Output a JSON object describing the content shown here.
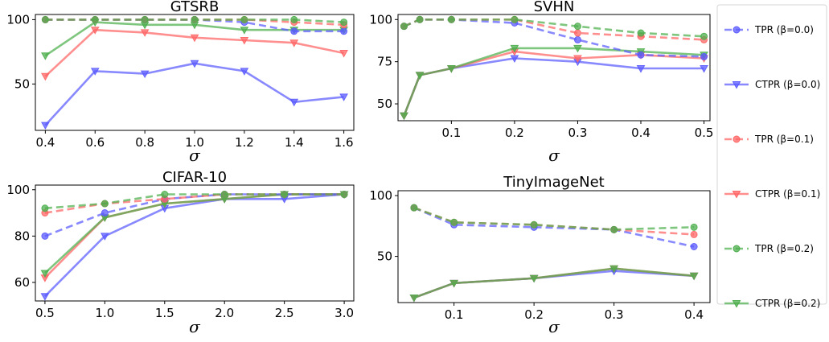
{
  "colors": {
    "blue": "#5a5aff",
    "red": "#ff6464",
    "green": "#4cae4c",
    "overlap": "#555533"
  },
  "legend": {
    "placement": "right",
    "entries": [
      {
        "label": "TPR (β=0.0)",
        "color": "#5a5aff",
        "style": "dashed",
        "marker": "circle"
      },
      {
        "label": "CTPR (β=0.0)",
        "color": "#5a5aff",
        "style": "solid",
        "marker": "triangle-down"
      },
      {
        "label": "TPR (β=0.1)",
        "color": "#ff6464",
        "style": "dashed",
        "marker": "circle"
      },
      {
        "label": "CTPR (β=0.1)",
        "color": "#ff6464",
        "style": "solid",
        "marker": "triangle-down"
      },
      {
        "label": "TPR (β=0.2)",
        "color": "#4cae4c",
        "style": "dashed",
        "marker": "circle"
      },
      {
        "label": "CTPR (β=0.2)",
        "color": "#4cae4c",
        "style": "solid",
        "marker": "triangle-down"
      }
    ]
  },
  "chart_data": [
    {
      "type": "line",
      "title": "GTSRB",
      "xlabel": "σ",
      "ylabel": "",
      "x": [
        0.4,
        0.6,
        0.8,
        1.0,
        1.2,
        1.4,
        1.6
      ],
      "xlim": [
        0.4,
        1.6
      ],
      "ylim": [
        0,
        100
      ],
      "xticks": [
        "0.4",
        "0.6",
        "0.8",
        "1.0",
        "1.2",
        "1.4",
        "1.6"
      ],
      "yticks": [
        "50",
        "100"
      ],
      "series": [
        {
          "name": "TPR (β=0.0)",
          "style": "dashed",
          "values": [
            100,
            100,
            100,
            100,
            98,
            91,
            91
          ]
        },
        {
          "name": "CTPR (β=0.0)",
          "style": "solid",
          "values": [
            18,
            60,
            58,
            66,
            60,
            36,
            40
          ]
        },
        {
          "name": "TPR (β=0.1)",
          "style": "dashed",
          "values": [
            100,
            100,
            100,
            100,
            100,
            98,
            96
          ]
        },
        {
          "name": "CTPR (β=0.1)",
          "style": "solid",
          "values": [
            56,
            92,
            90,
            86,
            84,
            82,
            74
          ]
        },
        {
          "name": "TPR (β=0.2)",
          "style": "dashed",
          "values": [
            100,
            100,
            100,
            100,
            100,
            100,
            98
          ]
        },
        {
          "name": "CTPR (β=0.2)",
          "style": "solid",
          "values": [
            72,
            98,
            96,
            96,
            92,
            92,
            92
          ]
        }
      ]
    },
    {
      "type": "line",
      "title": "SVHN",
      "xlabel": "σ",
      "ylabel": "",
      "x": [
        0.025,
        0.05,
        0.1,
        0.2,
        0.3,
        0.4,
        0.5
      ],
      "xlim": [
        0.025,
        0.5
      ],
      "ylim": [
        40,
        100
      ],
      "xticks": [
        "0.1",
        "0.2",
        "0.3",
        "0.4",
        "0.5"
      ],
      "yticks": [
        "50",
        "75",
        "100"
      ],
      "series": [
        {
          "name": "TPR (β=0.0)",
          "style": "dashed",
          "values": [
            96,
            100,
            100,
            98,
            88,
            79,
            78
          ]
        },
        {
          "name": "CTPR (β=0.0)",
          "style": "solid",
          "values": [
            43,
            67,
            71,
            77,
            75,
            71,
            71
          ]
        },
        {
          "name": "TPR (β=0.1)",
          "style": "dashed",
          "values": [
            96,
            100,
            100,
            100,
            92,
            90,
            88
          ]
        },
        {
          "name": "CTPR (β=0.1)",
          "style": "solid",
          "values": [
            43,
            67,
            71,
            81,
            77,
            79,
            77
          ]
        },
        {
          "name": "TPR (β=0.2)",
          "style": "dashed",
          "values": [
            96,
            100,
            100,
            100,
            96,
            92,
            90
          ]
        },
        {
          "name": "CTPR (β=0.2)",
          "style": "solid",
          "values": [
            43,
            67,
            71,
            83,
            83,
            81,
            79
          ]
        }
      ]
    },
    {
      "type": "line",
      "title": "CIFAR-10",
      "xlabel": "σ",
      "ylabel": "",
      "x": [
        0.5,
        1.0,
        1.5,
        2.0,
        2.5,
        3.0
      ],
      "xlim": [
        0.5,
        3.0
      ],
      "ylim": [
        50,
        100
      ],
      "xticks": [
        "0.5",
        "1.0",
        "1.5",
        "2.0",
        "2.5",
        "3.0"
      ],
      "yticks": [
        "60",
        "80",
        "100"
      ],
      "series": [
        {
          "name": "TPR (β=0.0)",
          "style": "dashed",
          "values": [
            80,
            90,
            96,
            98,
            98,
            98
          ]
        },
        {
          "name": "CTPR (β=0.0)",
          "style": "solid",
          "values": [
            54,
            80,
            92,
            96,
            96,
            98
          ]
        },
        {
          "name": "TPR (β=0.1)",
          "style": "dashed",
          "values": [
            90,
            94,
            96,
            98,
            98,
            98
          ]
        },
        {
          "name": "CTPR (β=0.1)",
          "style": "solid",
          "values": [
            62,
            88,
            94,
            96,
            98,
            98
          ]
        },
        {
          "name": "TPR (β=0.2)",
          "style": "dashed",
          "values": [
            92,
            94,
            98,
            98,
            98,
            98
          ]
        },
        {
          "name": "CTPR (β=0.2)",
          "style": "solid",
          "values": [
            64,
            88,
            94,
            96,
            98,
            98
          ]
        }
      ]
    },
    {
      "type": "line",
      "title": "TinyImageNet",
      "xlabel": "σ",
      "ylabel": "",
      "x": [
        0.05,
        0.1,
        0.2,
        0.3,
        0.4
      ],
      "xlim": [
        0.05,
        0.4
      ],
      "ylim": [
        10,
        100
      ],
      "xticks": [
        "0.1",
        "0.2",
        "0.3",
        "0.4"
      ],
      "yticks": [
        "50",
        "100"
      ],
      "series": [
        {
          "name": "TPR (β=0.0)",
          "style": "dashed",
          "values": [
            90,
            76,
            74,
            72,
            58
          ]
        },
        {
          "name": "CTPR (β=0.0)",
          "style": "solid",
          "values": [
            16,
            28,
            32,
            38,
            34
          ]
        },
        {
          "name": "TPR (β=0.1)",
          "style": "dashed",
          "values": [
            90,
            78,
            76,
            72,
            68
          ]
        },
        {
          "name": "CTPR (β=0.1)",
          "style": "solid",
          "values": [
            16,
            28,
            32,
            40,
            34
          ]
        },
        {
          "name": "TPR (β=0.2)",
          "style": "dashed",
          "values": [
            90,
            78,
            76,
            72,
            74
          ]
        },
        {
          "name": "CTPR (β=0.2)",
          "style": "solid",
          "values": [
            16,
            28,
            32,
            40,
            34
          ]
        }
      ]
    }
  ]
}
